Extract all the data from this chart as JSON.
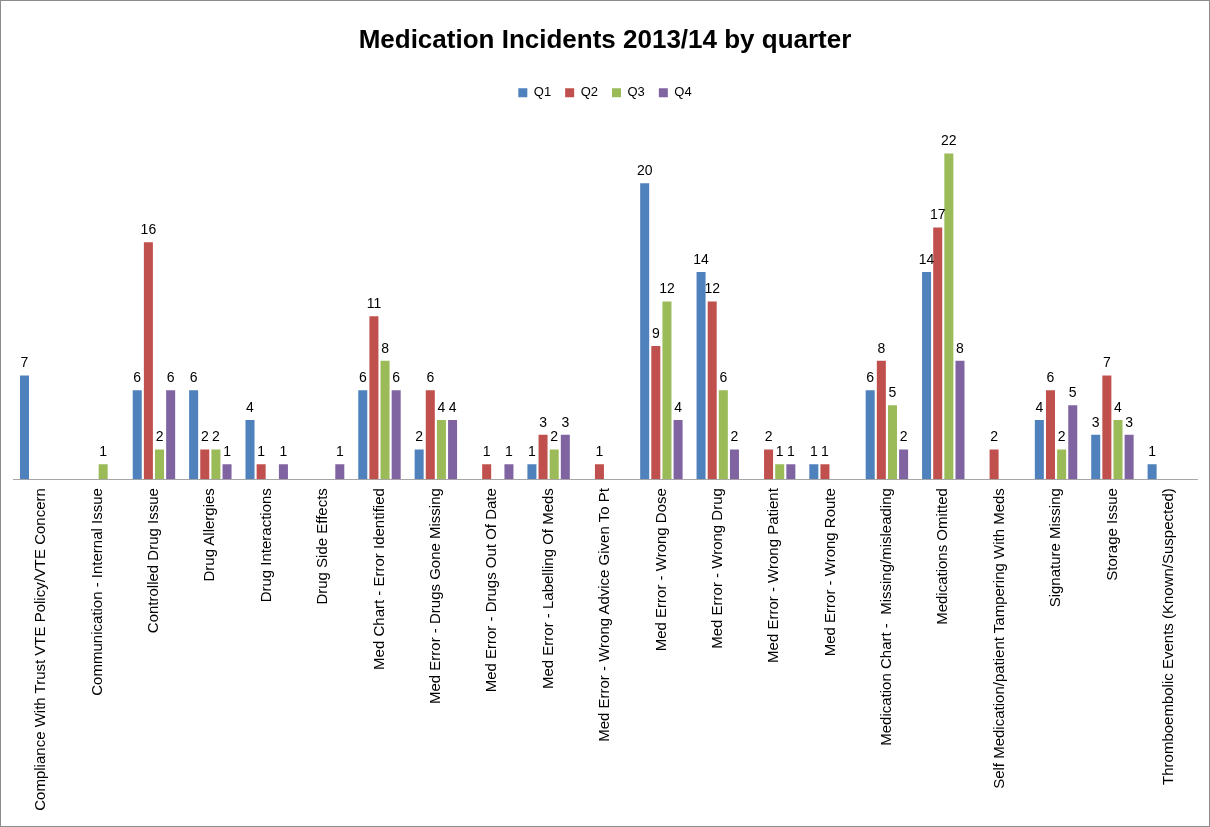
{
  "chart_data": {
    "type": "bar",
    "title": "Medication Incidents 2013/14 by quarter",
    "categories": [
      "Compliance With Trust VTE Policy/VTE Concern",
      "Communication - Internal Issue",
      "Controlled Drug Issue",
      "Drug Allergies",
      "Drug Interactions",
      "Drug Side Effects",
      "Med Chart - Error Identified",
      "Med Error - Drugs Gone Missing",
      "Med Error - Drugs Out Of Date",
      "Med Error - Labelling Of Meds",
      "Med Error - Wrong Advice Given To Pt",
      "Med Error - Wrong Dose",
      "Med Error - Wrong Drug",
      "Med Error - Wrong Patient",
      "Med Error - Wrong Route",
      "Medication Chart -  Missing/misleading",
      "Medications Omitted",
      "Self Medication/patient Tampering With Meds",
      "Signature Missing",
      "Storage Issue",
      "Thromboembolic Events (Known/Suspected)"
    ],
    "series": [
      {
        "name": "Q1",
        "color": "#4f81bd",
        "values": [
          7,
          null,
          6,
          6,
          4,
          null,
          6,
          2,
          null,
          1,
          null,
          20,
          14,
          null,
          1,
          6,
          14,
          null,
          4,
          3,
          1
        ]
      },
      {
        "name": "Q2",
        "color": "#c0504d",
        "values": [
          null,
          null,
          16,
          2,
          1,
          null,
          11,
          6,
          1,
          3,
          1,
          9,
          12,
          2,
          1,
          8,
          17,
          2,
          6,
          7,
          null
        ]
      },
      {
        "name": "Q3",
        "color": "#9bbb59",
        "values": [
          null,
          1,
          2,
          2,
          null,
          null,
          8,
          4,
          null,
          2,
          null,
          12,
          6,
          1,
          null,
          5,
          22,
          null,
          2,
          4,
          null
        ]
      },
      {
        "name": "Q4",
        "color": "#8064a2",
        "values": [
          null,
          null,
          6,
          1,
          1,
          1,
          6,
          4,
          1,
          3,
          null,
          4,
          2,
          1,
          null,
          2,
          8,
          null,
          5,
          3,
          null
        ]
      }
    ],
    "data_labels": true,
    "legend": "top",
    "grid": false,
    "tick_labels": "x"
  }
}
